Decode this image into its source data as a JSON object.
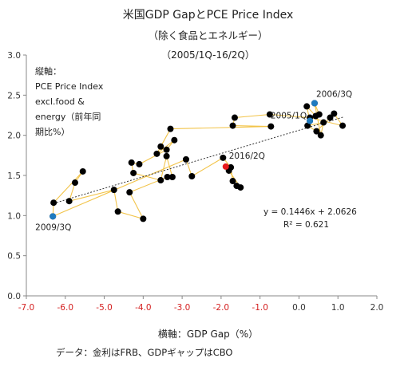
{
  "title": "米国GDP GapとPCE Price Index",
  "subtitle": "（除く食品とエネルギー）",
  "period": "（2005/1Q-16/2Q）",
  "chart_data": {
    "type": "scatter",
    "title": "米国GDP GapとPCE Price Index",
    "xlabel": "横軸：GDP Gap（%）",
    "ylabel": "縦軸：\nPCE Price Index\nexcl.food &\nenergy（前年同\n期比%）",
    "xlim": [
      -7.0,
      2.0
    ],
    "ylim": [
      0.0,
      3.0
    ],
    "xticks": [
      "-7.0",
      "-6.0",
      "-5.0",
      "-4.0",
      "-3.0",
      "-2.0",
      "-1.0",
      "0.0",
      "1.0",
      "2.0"
    ],
    "yticks": [
      "0.0",
      "0.5",
      "1.0",
      "1.5",
      "2.0",
      "2.5",
      "3.0"
    ],
    "grid": false,
    "colors": {
      "points": "#000000",
      "path": "#f2c44a",
      "highlight_blue": "#1f7bc0",
      "highlight_red": "#e8191c",
      "trend": "#333333",
      "neg_tick": "#d42020"
    },
    "series": [
      {
        "points": [
          [
            0.28,
            2.18
          ],
          [
            0.2,
            2.36
          ],
          [
            0.43,
            2.24
          ],
          [
            0.52,
            2.26
          ],
          [
            0.4,
            2.4
          ],
          [
            0.56,
            2.0
          ],
          [
            0.63,
            2.16
          ],
          [
            0.22,
            2.12
          ],
          [
            0.45,
            2.05
          ],
          [
            0.8,
            2.22
          ],
          [
            0.9,
            2.27
          ],
          [
            1.12,
            2.12
          ],
          [
            0.28,
            2.22
          ],
          [
            -0.75,
            2.26
          ],
          [
            -1.65,
            2.22
          ],
          [
            -1.7,
            2.12
          ],
          [
            -0.72,
            2.11
          ],
          [
            -3.3,
            2.08
          ],
          [
            -3.55,
            1.86
          ],
          [
            -3.65,
            1.77
          ],
          [
            -3.2,
            1.94
          ],
          [
            -3.4,
            1.82
          ],
          [
            -4.1,
            1.64
          ],
          [
            -4.3,
            1.66
          ],
          [
            -4.25,
            1.53
          ],
          [
            -3.55,
            1.44
          ],
          [
            -3.4,
            1.74
          ],
          [
            -3.25,
            1.48
          ],
          [
            -3.38,
            1.48
          ],
          [
            -4.35,
            1.29
          ],
          [
            -4.0,
            0.96
          ],
          [
            -4.65,
            1.05
          ],
          [
            -4.75,
            1.32
          ],
          [
            -5.9,
            1.18
          ],
          [
            -5.75,
            1.41
          ],
          [
            -5.55,
            1.55
          ],
          [
            -6.3,
            1.16
          ],
          [
            -6.32,
            0.99
          ],
          [
            -2.9,
            1.7
          ],
          [
            -2.75,
            1.49
          ],
          [
            -1.95,
            1.72
          ],
          [
            -1.75,
            1.6
          ],
          [
            -1.7,
            1.43
          ],
          [
            -1.6,
            1.37
          ],
          [
            -1.5,
            1.35
          ],
          [
            -1.8,
            1.56
          ]
        ]
      }
    ],
    "highlights": [
      {
        "label": "2006/3Q",
        "x": 0.4,
        "y": 2.4,
        "color": "#1f7bc0"
      },
      {
        "label": "2005/1Q",
        "x": 0.28,
        "y": 2.18,
        "color": "#1f7bc0"
      },
      {
        "label": "2009/3Q",
        "x": -6.32,
        "y": 0.99,
        "color": "#1f7bc0"
      },
      {
        "label": "2016/2Q",
        "x": -1.88,
        "y": 1.61,
        "color": "#e8191c"
      }
    ],
    "trendline": {
      "slope": 0.1446,
      "intercept": 2.0626,
      "equation": "y = 0.1446x + 2.0626",
      "r2": "R² = 0.621"
    }
  },
  "source": "データ：金利はFRB、GDPギャップはCBO"
}
